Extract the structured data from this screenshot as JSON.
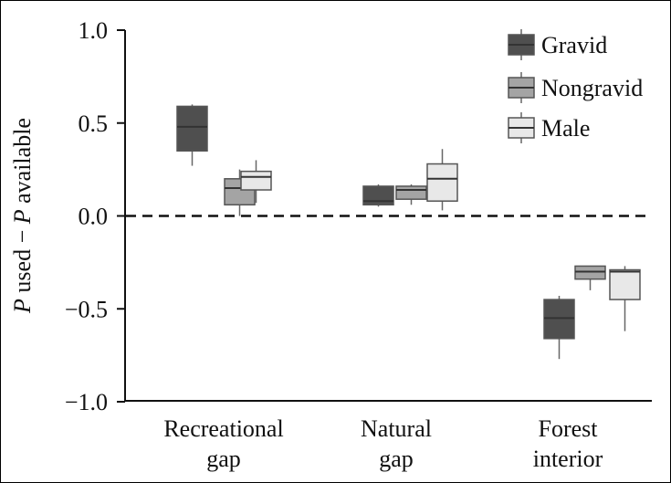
{
  "chart_data": {
    "type": "box",
    "categories": [
      [
        "Recreational",
        "gap"
      ],
      [
        "Natural",
        "gap"
      ],
      [
        "Forest",
        "interior"
      ]
    ],
    "ylabel": {
      "italic1": "P",
      "text1": " used  −  ",
      "italic2": "P",
      "text2": " available"
    },
    "yticks": [
      "1.0",
      "0.5",
      "0.0",
      "−0.5",
      "−1.0"
    ],
    "ylim": [
      -1.0,
      1.0
    ],
    "reference_line": 0.0,
    "legend": {
      "position": "top-right"
    },
    "series": [
      {
        "name": "Gravid",
        "color": "#4f4f4f",
        "boxes": [
          {
            "min": 0.27,
            "q1": 0.35,
            "median": 0.48,
            "q3": 0.59,
            "max": 0.6
          },
          {
            "min": 0.05,
            "q1": 0.06,
            "median": 0.08,
            "q3": 0.16,
            "max": 0.17
          },
          {
            "min": -0.77,
            "q1": -0.66,
            "median": -0.55,
            "q3": -0.45,
            "max": -0.43
          }
        ]
      },
      {
        "name": "Nongravid",
        "color": "#a4a4a4",
        "boxes": [
          {
            "min": 0.0,
            "q1": 0.06,
            "median": 0.15,
            "q3": 0.2,
            "max": 0.25
          },
          {
            "min": 0.06,
            "q1": 0.09,
            "median": 0.14,
            "q3": 0.16,
            "max": 0.17
          },
          {
            "min": -0.4,
            "q1": -0.34,
            "median": -0.3,
            "q3": -0.27,
            "max": -0.27
          }
        ]
      },
      {
        "name": "Male",
        "color": "#e8e8e8",
        "boxes": [
          {
            "min": 0.07,
            "q1": 0.14,
            "median": 0.21,
            "q3": 0.24,
            "max": 0.3
          },
          {
            "min": 0.03,
            "q1": 0.08,
            "median": 0.2,
            "q3": 0.28,
            "max": 0.36
          },
          {
            "min": -0.62,
            "q1": -0.45,
            "median": -0.3,
            "q3": -0.29,
            "max": -0.27
          }
        ]
      }
    ]
  }
}
